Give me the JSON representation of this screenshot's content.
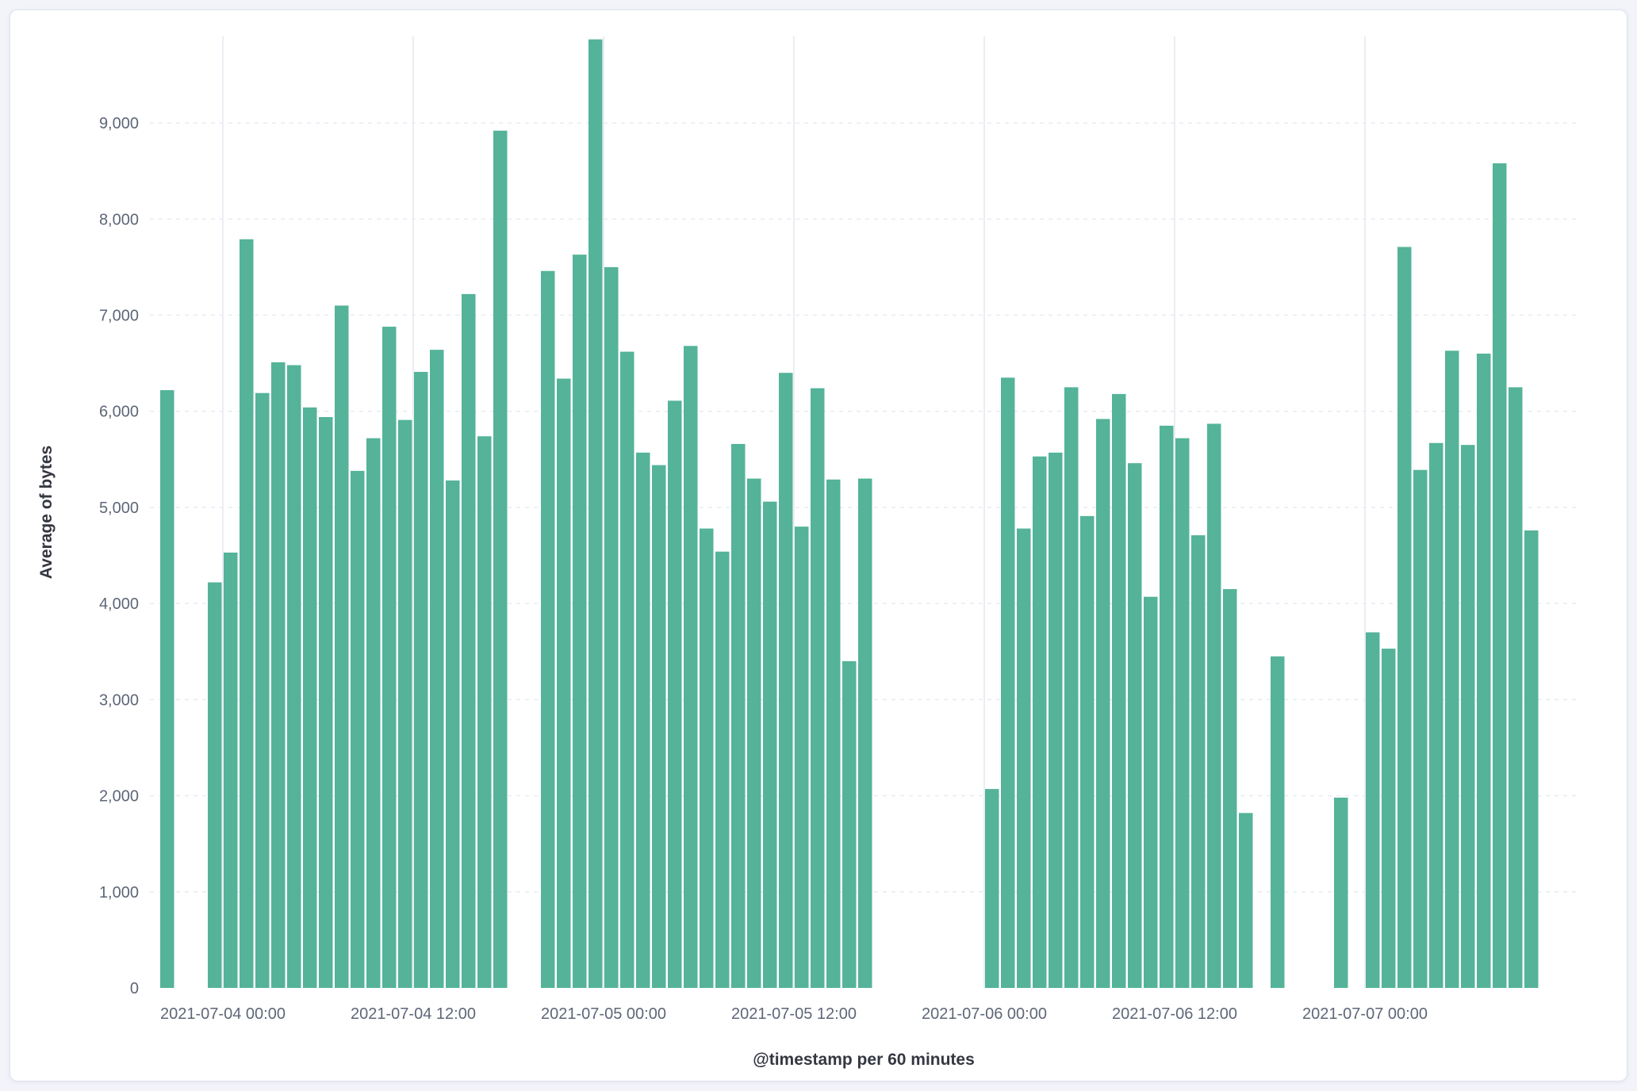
{
  "panel": {
    "background_color": "#ffffff",
    "page_background_color": "#f2f4f9"
  },
  "chart_data": {
    "type": "bar",
    "title": "",
    "xlabel": "@timestamp per 60 minutes",
    "ylabel": "Average of bytes",
    "series_name": "Average of bytes",
    "interval": "60 minutes",
    "bar_color": "#54B399",
    "grid": "on",
    "ylim": [
      0,
      9900
    ],
    "y_ticks": [
      {
        "value": 0,
        "label": "0"
      },
      {
        "value": 1000,
        "label": "1,000"
      },
      {
        "value": 2000,
        "label": "2,000"
      },
      {
        "value": 3000,
        "label": "3,000"
      },
      {
        "value": 4000,
        "label": "4,000"
      },
      {
        "value": 5000,
        "label": "5,000"
      },
      {
        "value": 6000,
        "label": "6,000"
      },
      {
        "value": 7000,
        "label": "7,000"
      },
      {
        "value": 8000,
        "label": "8,000"
      },
      {
        "value": 9000,
        "label": "9,000"
      }
    ],
    "x_ticks": [
      "2021-07-04 00:00",
      "2021-07-04 12:00",
      "2021-07-05 00:00",
      "2021-07-05 12:00",
      "2021-07-06 00:00",
      "2021-07-06 12:00",
      "2021-07-07 00:00"
    ],
    "points": [
      {
        "t": "2021-07-03 20:00",
        "v": 6220
      },
      {
        "t": "2021-07-03 23:00",
        "v": 4220
      },
      {
        "t": "2021-07-04 00:00",
        "v": 4530
      },
      {
        "t": "2021-07-04 01:00",
        "v": 7790
      },
      {
        "t": "2021-07-04 02:00",
        "v": 6190
      },
      {
        "t": "2021-07-04 03:00",
        "v": 6510
      },
      {
        "t": "2021-07-04 04:00",
        "v": 6480
      },
      {
        "t": "2021-07-04 05:00",
        "v": 6040
      },
      {
        "t": "2021-07-04 06:00",
        "v": 5940
      },
      {
        "t": "2021-07-04 07:00",
        "v": 7100
      },
      {
        "t": "2021-07-04 08:00",
        "v": 5380
      },
      {
        "t": "2021-07-04 09:00",
        "v": 5720
      },
      {
        "t": "2021-07-04 10:00",
        "v": 6880
      },
      {
        "t": "2021-07-04 11:00",
        "v": 5910
      },
      {
        "t": "2021-07-04 12:00",
        "v": 6410
      },
      {
        "t": "2021-07-04 13:00",
        "v": 6640
      },
      {
        "t": "2021-07-04 14:00",
        "v": 5280
      },
      {
        "t": "2021-07-04 15:00",
        "v": 7220
      },
      {
        "t": "2021-07-04 16:00",
        "v": 5740
      },
      {
        "t": "2021-07-04 17:00",
        "v": 8920
      },
      {
        "t": "2021-07-04 20:00",
        "v": 7460
      },
      {
        "t": "2021-07-04 21:00",
        "v": 6340
      },
      {
        "t": "2021-07-04 22:00",
        "v": 7630
      },
      {
        "t": "2021-07-04 23:00",
        "v": 9870
      },
      {
        "t": "2021-07-05 00:00",
        "v": 7500
      },
      {
        "t": "2021-07-05 01:00",
        "v": 6620
      },
      {
        "t": "2021-07-05 02:00",
        "v": 5570
      },
      {
        "t": "2021-07-05 03:00",
        "v": 5440
      },
      {
        "t": "2021-07-05 04:00",
        "v": 6110
      },
      {
        "t": "2021-07-05 05:00",
        "v": 6680
      },
      {
        "t": "2021-07-05 06:00",
        "v": 4780
      },
      {
        "t": "2021-07-05 07:00",
        "v": 4540
      },
      {
        "t": "2021-07-05 08:00",
        "v": 5660
      },
      {
        "t": "2021-07-05 09:00",
        "v": 5300
      },
      {
        "t": "2021-07-05 10:00",
        "v": 5060
      },
      {
        "t": "2021-07-05 11:00",
        "v": 6400
      },
      {
        "t": "2021-07-05 12:00",
        "v": 4800
      },
      {
        "t": "2021-07-05 13:00",
        "v": 6240
      },
      {
        "t": "2021-07-05 14:00",
        "v": 5290
      },
      {
        "t": "2021-07-05 15:00",
        "v": 3400
      },
      {
        "t": "2021-07-05 16:00",
        "v": 5300
      },
      {
        "t": "2021-07-06 00:00",
        "v": 2070
      },
      {
        "t": "2021-07-06 01:00",
        "v": 6350
      },
      {
        "t": "2021-07-06 02:00",
        "v": 4780
      },
      {
        "t": "2021-07-06 03:00",
        "v": 5530
      },
      {
        "t": "2021-07-06 04:00",
        "v": 5570
      },
      {
        "t": "2021-07-06 05:00",
        "v": 6250
      },
      {
        "t": "2021-07-06 06:00",
        "v": 4910
      },
      {
        "t": "2021-07-06 07:00",
        "v": 5920
      },
      {
        "t": "2021-07-06 08:00",
        "v": 6180
      },
      {
        "t": "2021-07-06 09:00",
        "v": 5460
      },
      {
        "t": "2021-07-06 10:00",
        "v": 4070
      },
      {
        "t": "2021-07-06 11:00",
        "v": 5850
      },
      {
        "t": "2021-07-06 12:00",
        "v": 5720
      },
      {
        "t": "2021-07-06 13:00",
        "v": 4710
      },
      {
        "t": "2021-07-06 14:00",
        "v": 5870
      },
      {
        "t": "2021-07-06 15:00",
        "v": 4150
      },
      {
        "t": "2021-07-06 16:00",
        "v": 1820
      },
      {
        "t": "2021-07-06 18:00",
        "v": 3450
      },
      {
        "t": "2021-07-06 22:00",
        "v": 1980
      },
      {
        "t": "2021-07-07 00:00",
        "v": 3700
      },
      {
        "t": "2021-07-07 01:00",
        "v": 3530
      },
      {
        "t": "2021-07-07 02:00",
        "v": 7710
      },
      {
        "t": "2021-07-07 03:00",
        "v": 5390
      },
      {
        "t": "2021-07-07 04:00",
        "v": 5670
      },
      {
        "t": "2021-07-07 05:00",
        "v": 6630
      },
      {
        "t": "2021-07-07 06:00",
        "v": 5650
      },
      {
        "t": "2021-07-07 07:00",
        "v": 6600
      },
      {
        "t": "2021-07-07 08:00",
        "v": 8580
      },
      {
        "t": "2021-07-07 09:00",
        "v": 6250
      },
      {
        "t": "2021-07-07 10:00",
        "v": 4760
      }
    ]
  }
}
